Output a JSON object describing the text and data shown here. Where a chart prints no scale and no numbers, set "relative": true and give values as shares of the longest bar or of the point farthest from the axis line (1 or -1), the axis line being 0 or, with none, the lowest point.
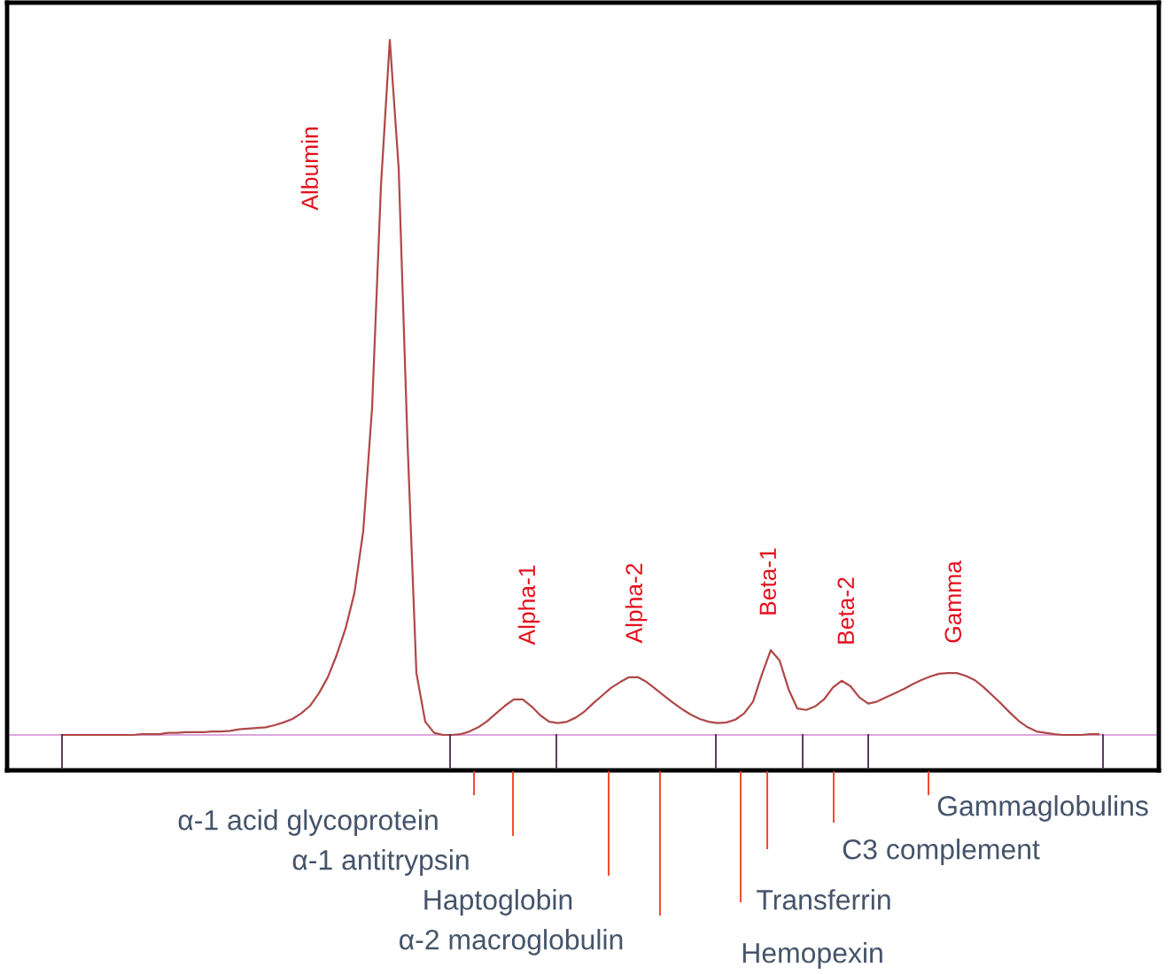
{
  "chart_data": {
    "type": "line",
    "relative": true,
    "categories": [
      null,
      null,
      null,
      null,
      null,
      null,
      null,
      null,
      null,
      null,
      null,
      null,
      null,
      null,
      null,
      null,
      null,
      null,
      null,
      null,
      null,
      null,
      null,
      null,
      null,
      null,
      null,
      null,
      null,
      null,
      null,
      null,
      null,
      null,
      null,
      null,
      null,
      null,
      null,
      null,
      null,
      null,
      null,
      null,
      null,
      null,
      null,
      null,
      null,
      null,
      null,
      null,
      null,
      null,
      null,
      null,
      null,
      null,
      null,
      null,
      null,
      null,
      null,
      null,
      null,
      null,
      null,
      null,
      null,
      null,
      null,
      null,
      null,
      null,
      null,
      null,
      null,
      null,
      null,
      null,
      null,
      null,
      null,
      null,
      null,
      null,
      null,
      null,
      null,
      null,
      null,
      null,
      null,
      null,
      null,
      null,
      null,
      null,
      null,
      null,
      null,
      null,
      null,
      null,
      null,
      null,
      null,
      null,
      null,
      null,
      null,
      null,
      null,
      null,
      null,
      null,
      null,
      null
    ],
    "series": [
      {
        "color": "#b04848",
        "values": [
          0,
          0,
          0,
          0,
          0,
          0,
          0,
          0,
          0,
          0.001,
          0.001,
          0.001,
          0.003,
          0.003,
          0.004,
          0.004,
          0.004,
          0.005,
          0.005,
          0.006,
          0.008,
          0.009,
          0.01,
          0.011,
          0.014,
          0.018,
          0.023,
          0.031,
          0.042,
          0.06,
          0.083,
          0.115,
          0.153,
          0.204,
          0.293,
          0.471,
          0.79,
          1,
          0.815,
          0.42,
          0.089,
          0.019,
          0.003,
          0,
          0,
          0.001,
          0.005,
          0.011,
          0.02,
          0.031,
          0.042,
          0.051,
          0.051,
          0.041,
          0.028,
          0.019,
          0.017,
          0.019,
          0.025,
          0.034,
          0.046,
          0.057,
          0.068,
          0.076,
          0.083,
          0.083,
          0.076,
          0.066,
          0.056,
          0.046,
          0.037,
          0.029,
          0.023,
          0.019,
          0.017,
          0.018,
          0.022,
          0.031,
          0.048,
          0.087,
          0.122,
          0.107,
          0.066,
          0.038,
          0.036,
          0.041,
          0.051,
          0.068,
          0.078,
          0.07,
          0.054,
          0.045,
          0.048,
          0.054,
          0.06,
          0.066,
          0.073,
          0.079,
          0.084,
          0.088,
          0.089,
          0.089,
          0.085,
          0.079,
          0.069,
          0.057,
          0.045,
          0.032,
          0.02,
          0.011,
          0.005,
          0.003,
          0.001,
          0,
          0,
          0,
          0.001,
          0.001
        ]
      }
    ],
    "ref_lines": [
      {
        "axis": "y",
        "value": 0,
        "color": "#d088d0"
      }
    ],
    "annotations": [
      "Albumin",
      "Alpha-1",
      "Alpha-2",
      "Beta-1",
      "Beta-2",
      "Gamma",
      "α-1 acid glycoprotein",
      "α-1 antitrypsin",
      "Haptoglobin",
      "α-2 macroglobulin",
      "Transferrin",
      "Hemopexin",
      "C3 complement",
      "Gammaglobulins"
    ]
  }
}
